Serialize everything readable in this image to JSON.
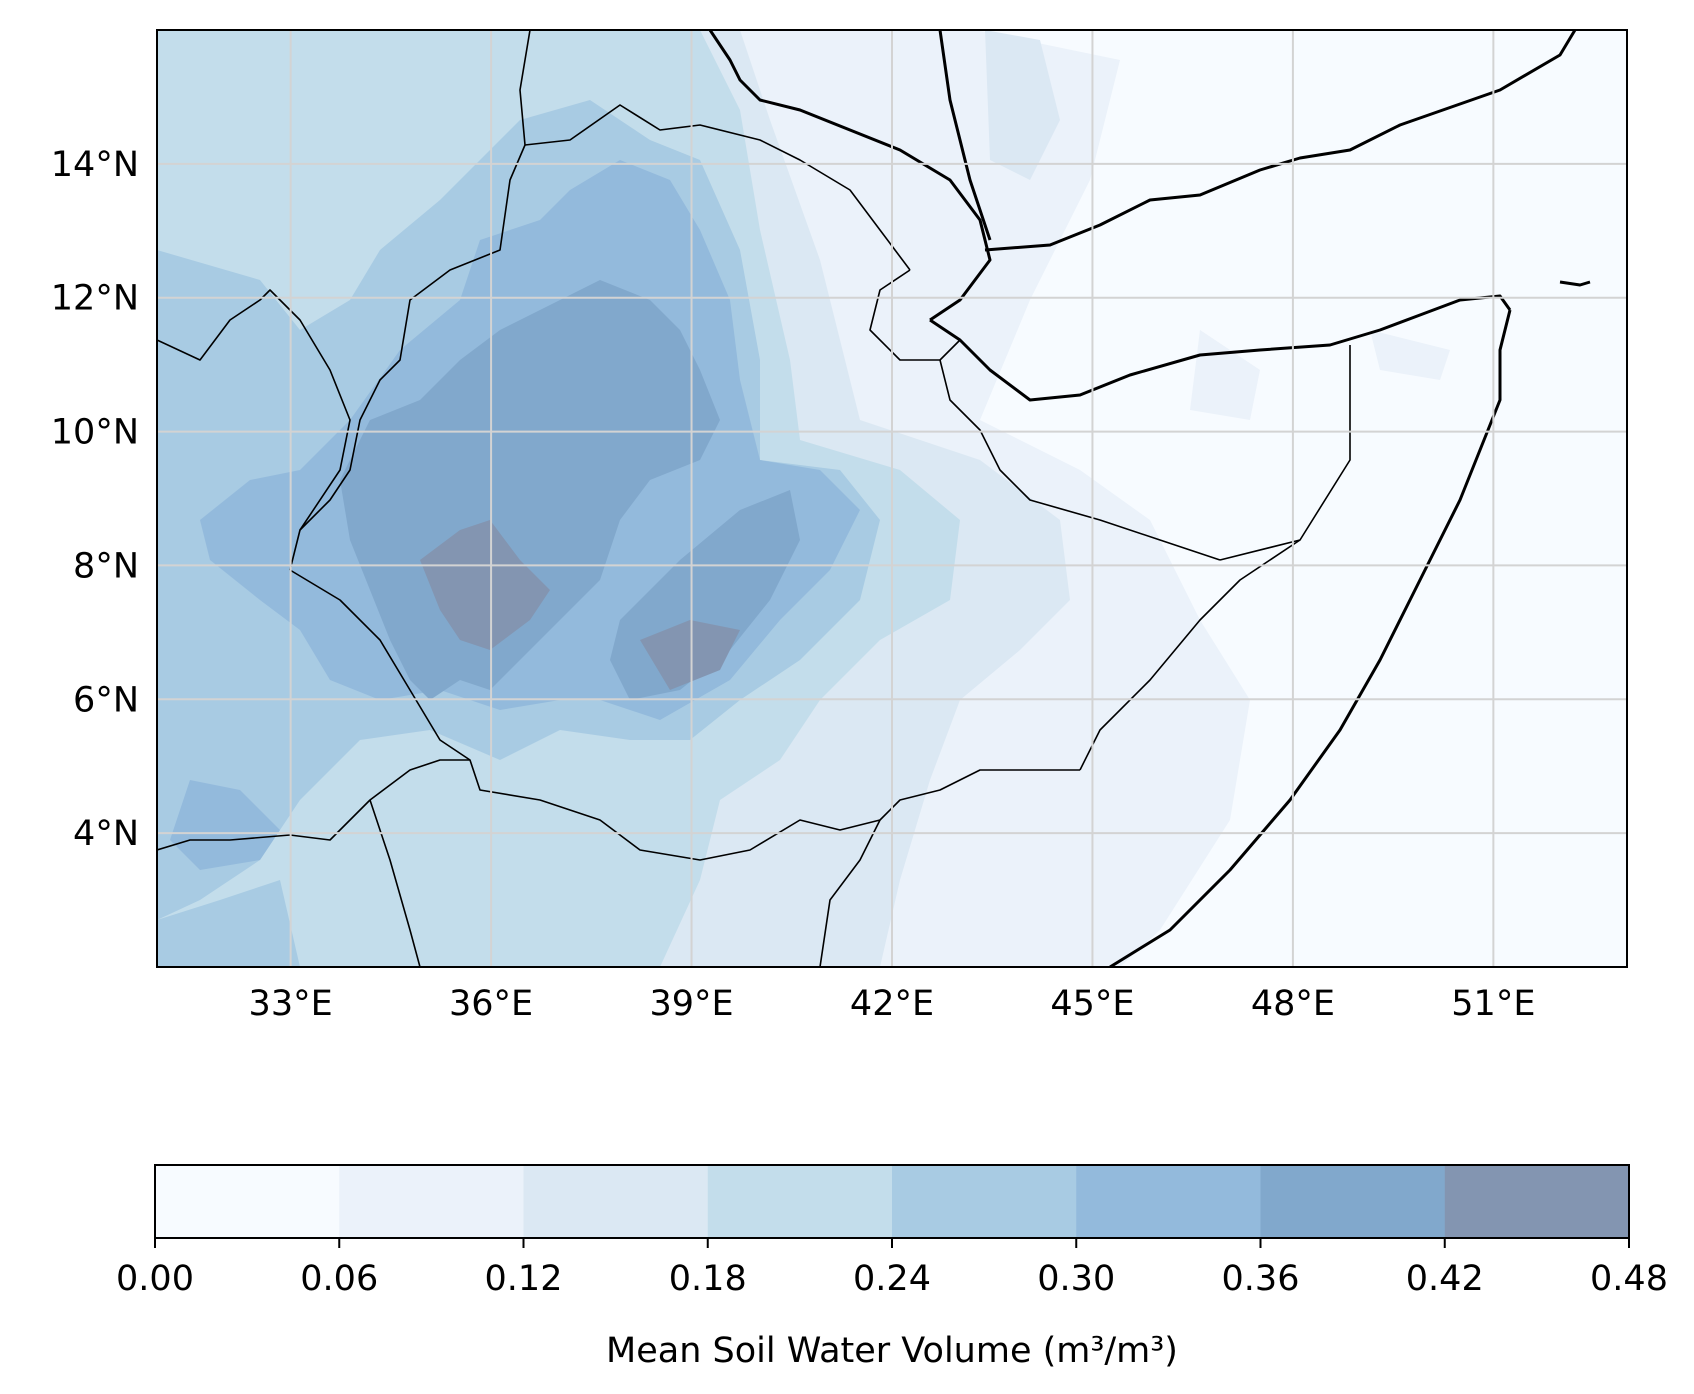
{
  "map": {
    "type": "filled-contour-map",
    "lon_range": [
      31,
      53
    ],
    "lat_range": [
      2,
      16
    ],
    "lon_ticks": [
      {
        "value": 33,
        "label": "33°E"
      },
      {
        "value": 36,
        "label": "36°E"
      },
      {
        "value": 39,
        "label": "39°E"
      },
      {
        "value": 42,
        "label": "42°E"
      },
      {
        "value": 45,
        "label": "45°E"
      },
      {
        "value": 48,
        "label": "48°E"
      },
      {
        "value": 51,
        "label": "51°E"
      }
    ],
    "lat_ticks": [
      {
        "value": 4,
        "label": "4°N"
      },
      {
        "value": 6,
        "label": "6°N"
      },
      {
        "value": 8,
        "label": "8°N"
      },
      {
        "value": 10,
        "label": "10°N"
      },
      {
        "value": 12,
        "label": "12°N"
      },
      {
        "value": 14,
        "label": "14°N"
      }
    ],
    "gridlines": true,
    "colors": {
      "gridline": "#d3d3d3",
      "border": "#000000",
      "background": "#f7fbff"
    }
  },
  "colorbar": {
    "label": "Mean Soil Water Volume (m³/m³)",
    "orientation": "horizontal",
    "placement": "bottom",
    "levels": [
      0.0,
      0.06,
      0.12,
      0.18,
      0.24,
      0.3,
      0.36,
      0.42,
      0.48
    ],
    "tick_labels": [
      "0.00",
      "0.06",
      "0.12",
      "0.18",
      "0.24",
      "0.30",
      "0.36",
      "0.42",
      "0.48"
    ],
    "colors": [
      "#f7fbff",
      "#ebf2fa",
      "#dbe8f3",
      "#c3ddeb",
      "#a8cbe3",
      "#93badc",
      "#81a8cc",
      "#8395b1"
    ]
  }
}
